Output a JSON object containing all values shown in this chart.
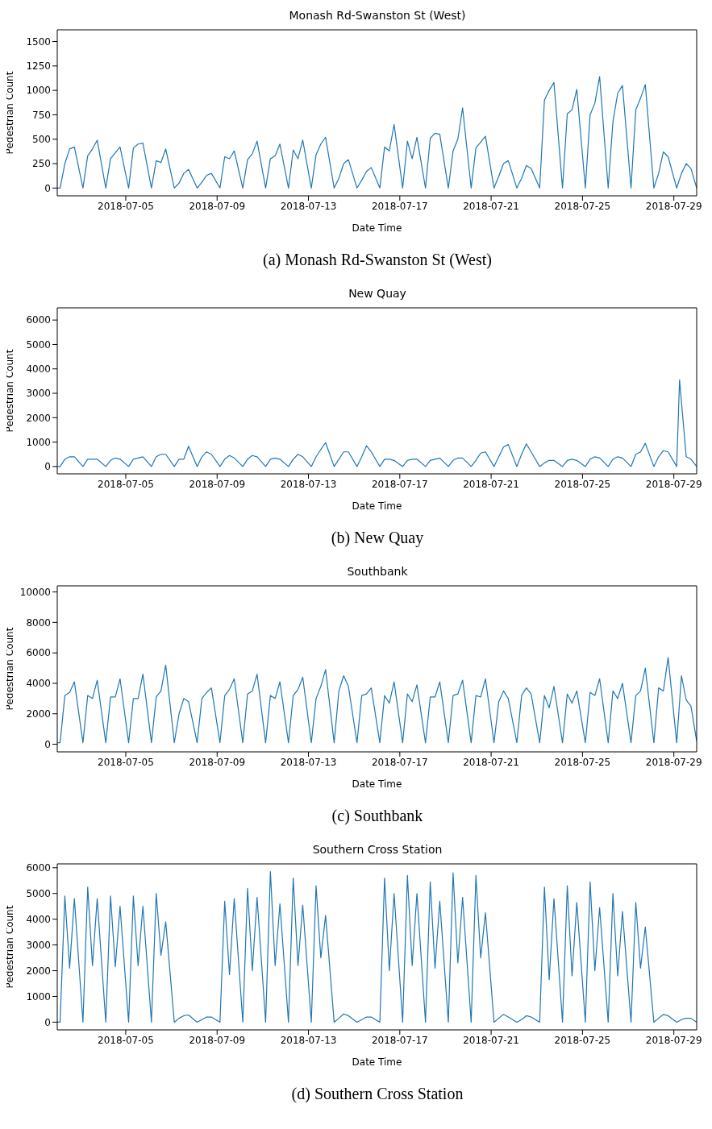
{
  "chart_data": [
    {
      "type": "line",
      "title": "Monash Rd-Swanston St (West)",
      "xlabel": "Date Time",
      "ylabel": "Pedestrian Count",
      "annotations": [
        "(a) Monash Rd-Swanston St (West)"
      ],
      "color": "#1f77b4",
      "xlim": [
        "2018-07-02",
        "2018-07-30"
      ],
      "ylim": [
        -80,
        1620
      ],
      "yticks": [
        0,
        250,
        500,
        750,
        1000,
        1250,
        1500
      ],
      "xticks": [
        "2018-07-05",
        "2018-07-09",
        "2018-07-13",
        "2018-07-17",
        "2018-07-21",
        "2018-07-25",
        "2018-07-29"
      ],
      "x": [
        "2018-07-02T00:00",
        "2018-07-02T03:00",
        "2018-07-02T08:00",
        "2018-07-02T13:00",
        "2018-07-02T18:00",
        "2018-07-03T03:00",
        "2018-07-03T08:00",
        "2018-07-03T13:00",
        "2018-07-03T18:00",
        "2018-07-04T03:00",
        "2018-07-04T08:00",
        "2018-07-04T13:00",
        "2018-07-04T18:00",
        "2018-07-05T03:00",
        "2018-07-05T08:00",
        "2018-07-05T13:00",
        "2018-07-05T18:00",
        "2018-07-06T03:00",
        "2018-07-06T08:00",
        "2018-07-06T13:00",
        "2018-07-06T18:00",
        "2018-07-07T03:00",
        "2018-07-07T08:00",
        "2018-07-07T13:00",
        "2018-07-07T18:00",
        "2018-07-08T03:00",
        "2018-07-08T08:00",
        "2018-07-08T13:00",
        "2018-07-08T18:00",
        "2018-07-09T03:00",
        "2018-07-09T08:00",
        "2018-07-09T13:00",
        "2018-07-09T18:00",
        "2018-07-10T03:00",
        "2018-07-10T08:00",
        "2018-07-10T13:00",
        "2018-07-10T18:00",
        "2018-07-11T03:00",
        "2018-07-11T08:00",
        "2018-07-11T13:00",
        "2018-07-11T18:00",
        "2018-07-12T03:00",
        "2018-07-12T08:00",
        "2018-07-12T13:00",
        "2018-07-12T18:00",
        "2018-07-13T03:00",
        "2018-07-13T08:00",
        "2018-07-13T13:00",
        "2018-07-13T18:00",
        "2018-07-14T03:00",
        "2018-07-14T08:00",
        "2018-07-14T13:00",
        "2018-07-14T18:00",
        "2018-07-15T03:00",
        "2018-07-15T08:00",
        "2018-07-15T13:00",
        "2018-07-15T18:00",
        "2018-07-16T03:00",
        "2018-07-16T08:00",
        "2018-07-16T13:00",
        "2018-07-16T18:00",
        "2018-07-17T03:00",
        "2018-07-17T08:00",
        "2018-07-17T13:00",
        "2018-07-17T18:00",
        "2018-07-18T03:00",
        "2018-07-18T08:00",
        "2018-07-18T13:00",
        "2018-07-18T18:00",
        "2018-07-19T03:00",
        "2018-07-19T08:00",
        "2018-07-19T13:00",
        "2018-07-19T18:00",
        "2018-07-20T03:00",
        "2018-07-20T08:00",
        "2018-07-20T13:00",
        "2018-07-20T18:00",
        "2018-07-21T03:00",
        "2018-07-21T08:00",
        "2018-07-21T13:00",
        "2018-07-21T18:00",
        "2018-07-22T03:00",
        "2018-07-22T08:00",
        "2018-07-22T13:00",
        "2018-07-22T18:00",
        "2018-07-23T03:00",
        "2018-07-23T08:00",
        "2018-07-23T13:00",
        "2018-07-23T18:00",
        "2018-07-24T03:00",
        "2018-07-24T08:00",
        "2018-07-24T13:00",
        "2018-07-24T18:00",
        "2018-07-25T03:00",
        "2018-07-25T08:00",
        "2018-07-25T13:00",
        "2018-07-25T18:00",
        "2018-07-26T03:00",
        "2018-07-26T08:00",
        "2018-07-26T13:00",
        "2018-07-26T18:00",
        "2018-07-27T03:00",
        "2018-07-27T08:00",
        "2018-07-27T13:00",
        "2018-07-27T18:00",
        "2018-07-28T03:00",
        "2018-07-28T08:00",
        "2018-07-28T13:00",
        "2018-07-28T18:00",
        "2018-07-29T03:00",
        "2018-07-29T08:00",
        "2018-07-29T13:00",
        "2018-07-29T18:00",
        "2018-07-30T00:00"
      ],
      "values": [
        0,
        0,
        250,
        400,
        420,
        0,
        330,
        400,
        490,
        0,
        300,
        360,
        420,
        0,
        410,
        450,
        460,
        0,
        280,
        260,
        400,
        0,
        50,
        150,
        190,
        0,
        60,
        130,
        150,
        0,
        320,
        300,
        380,
        0,
        290,
        350,
        480,
        0,
        300,
        330,
        450,
        0,
        390,
        300,
        490,
        0,
        340,
        450,
        520,
        0,
        100,
        250,
        290,
        0,
        80,
        170,
        210,
        0,
        420,
        380,
        650,
        0,
        480,
        300,
        520,
        0,
        510,
        560,
        550,
        0,
        380,
        500,
        820,
        0,
        410,
        470,
        530,
        0,
        120,
        250,
        280,
        0,
        100,
        230,
        200,
        0,
        900,
        1000,
        1080,
        0,
        760,
        800,
        1010,
        0,
        750,
        870,
        1140,
        0,
        680,
        970,
        1050,
        0,
        800,
        920,
        1060,
        0,
        150,
        370,
        320,
        0,
        150,
        250,
        200,
        0
      ]
    },
    {
      "type": "line",
      "title": "New Quay",
      "xlabel": "Date Time",
      "ylabel": "Pedestrian Count",
      "annotations": [
        "(b) New Quay"
      ],
      "color": "#1f77b4",
      "xlim": [
        "2018-07-02",
        "2018-07-30"
      ],
      "ylim": [
        -300,
        6500
      ],
      "yticks": [
        0,
        1000,
        2000,
        3000,
        4000,
        5000,
        6000
      ],
      "xticks": [
        "2018-07-05",
        "2018-07-09",
        "2018-07-13",
        "2018-07-17",
        "2018-07-21",
        "2018-07-25",
        "2018-07-29"
      ],
      "x": [
        "2018-07-02T00:00",
        "2018-07-02T03:00",
        "2018-07-02T08:00",
        "2018-07-02T13:00",
        "2018-07-02T18:00",
        "2018-07-03T03:00",
        "2018-07-03T08:00",
        "2018-07-03T13:00",
        "2018-07-03T18:00",
        "2018-07-04T03:00",
        "2018-07-04T08:00",
        "2018-07-04T13:00",
        "2018-07-04T18:00",
        "2018-07-05T03:00",
        "2018-07-05T08:00",
        "2018-07-05T13:00",
        "2018-07-05T18:00",
        "2018-07-06T03:00",
        "2018-07-06T08:00",
        "2018-07-06T13:00",
        "2018-07-06T18:00",
        "2018-07-07T03:00",
        "2018-07-07T08:00",
        "2018-07-07T13:00",
        "2018-07-07T18:00",
        "2018-07-08T03:00",
        "2018-07-08T08:00",
        "2018-07-08T13:00",
        "2018-07-08T18:00",
        "2018-07-09T03:00",
        "2018-07-09T08:00",
        "2018-07-09T13:00",
        "2018-07-09T18:00",
        "2018-07-10T03:00",
        "2018-07-10T08:00",
        "2018-07-10T13:00",
        "2018-07-10T18:00",
        "2018-07-11T03:00",
        "2018-07-11T08:00",
        "2018-07-11T13:00",
        "2018-07-11T18:00",
        "2018-07-12T03:00",
        "2018-07-12T08:00",
        "2018-07-12T13:00",
        "2018-07-12T18:00",
        "2018-07-13T03:00",
        "2018-07-13T08:00",
        "2018-07-13T13:00",
        "2018-07-13T18:00",
        "2018-07-14T03:00",
        "2018-07-14T08:00",
        "2018-07-14T13:00",
        "2018-07-14T18:00",
        "2018-07-15T03:00",
        "2018-07-15T08:00",
        "2018-07-15T13:00",
        "2018-07-15T18:00",
        "2018-07-16T03:00",
        "2018-07-16T08:00",
        "2018-07-16T13:00",
        "2018-07-16T18:00",
        "2018-07-17T03:00",
        "2018-07-17T08:00",
        "2018-07-17T13:00",
        "2018-07-17T18:00",
        "2018-07-18T03:00",
        "2018-07-18T08:00",
        "2018-07-18T13:00",
        "2018-07-18T18:00",
        "2018-07-19T03:00",
        "2018-07-19T08:00",
        "2018-07-19T13:00",
        "2018-07-19T18:00",
        "2018-07-20T03:00",
        "2018-07-20T08:00",
        "2018-07-20T13:00",
        "2018-07-20T18:00",
        "2018-07-21T03:00",
        "2018-07-21T08:00",
        "2018-07-21T13:00",
        "2018-07-21T18:00",
        "2018-07-22T03:00",
        "2018-07-22T08:00",
        "2018-07-22T13:00",
        "2018-07-22T18:00",
        "2018-07-23T03:00",
        "2018-07-23T08:00",
        "2018-07-23T13:00",
        "2018-07-23T18:00",
        "2018-07-24T03:00",
        "2018-07-24T08:00",
        "2018-07-24T13:00",
        "2018-07-24T18:00",
        "2018-07-25T03:00",
        "2018-07-25T08:00",
        "2018-07-25T13:00",
        "2018-07-25T18:00",
        "2018-07-26T03:00",
        "2018-07-26T08:00",
        "2018-07-26T13:00",
        "2018-07-26T18:00",
        "2018-07-27T03:00",
        "2018-07-27T08:00",
        "2018-07-27T13:00",
        "2018-07-27T18:00",
        "2018-07-28T03:00",
        "2018-07-28T08:00",
        "2018-07-28T13:00",
        "2018-07-28T18:00",
        "2018-07-29T03:00",
        "2018-07-29T06:00",
        "2018-07-29T13:00",
        "2018-07-29T18:00",
        "2018-07-30T00:00"
      ],
      "values": [
        0,
        0,
        300,
        400,
        400,
        0,
        300,
        300,
        300,
        0,
        250,
        350,
        300,
        0,
        300,
        350,
        400,
        0,
        400,
        500,
        500,
        0,
        300,
        300,
        830,
        0,
        400,
        600,
        500,
        0,
        300,
        450,
        350,
        0,
        300,
        450,
        400,
        0,
        300,
        350,
        300,
        0,
        300,
        500,
        400,
        0,
        400,
        700,
        980,
        0,
        300,
        600,
        600,
        0,
        400,
        850,
        600,
        0,
        300,
        300,
        250,
        0,
        250,
        300,
        300,
        0,
        250,
        300,
        350,
        0,
        250,
        350,
        350,
        0,
        250,
        550,
        600,
        0,
        400,
        800,
        900,
        0,
        500,
        930,
        600,
        0,
        150,
        250,
        250,
        0,
        250,
        300,
        250,
        0,
        300,
        400,
        350,
        0,
        300,
        400,
        350,
        0,
        500,
        600,
        950,
        0,
        400,
        650,
        600,
        0,
        3550,
        400,
        300,
        0
      ]
    },
    {
      "type": "line",
      "title": "Southbank",
      "xlabel": "Date Time",
      "ylabel": "Pedestrian Count",
      "annotations": [
        "(c) Southbank"
      ],
      "color": "#1f77b4",
      "xlim": [
        "2018-07-02",
        "2018-07-30"
      ],
      "ylim": [
        -500,
        10400
      ],
      "yticks": [
        0,
        2000,
        4000,
        6000,
        8000,
        10000
      ],
      "xticks": [
        "2018-07-05",
        "2018-07-09",
        "2018-07-13",
        "2018-07-17",
        "2018-07-21",
        "2018-07-25",
        "2018-07-29"
      ],
      "x": [
        "2018-07-02T00:00",
        "2018-07-02T03:00",
        "2018-07-02T08:00",
        "2018-07-02T13:00",
        "2018-07-02T18:00",
        "2018-07-03T03:00",
        "2018-07-03T08:00",
        "2018-07-03T13:00",
        "2018-07-03T18:00",
        "2018-07-04T03:00",
        "2018-07-04T08:00",
        "2018-07-04T13:00",
        "2018-07-04T18:00",
        "2018-07-05T03:00",
        "2018-07-05T08:00",
        "2018-07-05T13:00",
        "2018-07-05T18:00",
        "2018-07-06T03:00",
        "2018-07-06T08:00",
        "2018-07-06T13:00",
        "2018-07-06T18:00",
        "2018-07-07T03:00",
        "2018-07-07T08:00",
        "2018-07-07T13:00",
        "2018-07-07T18:00",
        "2018-07-08T03:00",
        "2018-07-08T08:00",
        "2018-07-08T13:00",
        "2018-07-08T18:00",
        "2018-07-09T03:00",
        "2018-07-09T08:00",
        "2018-07-09T13:00",
        "2018-07-09T18:00",
        "2018-07-10T03:00",
        "2018-07-10T08:00",
        "2018-07-10T13:00",
        "2018-07-10T18:00",
        "2018-07-11T03:00",
        "2018-07-11T08:00",
        "2018-07-11T13:00",
        "2018-07-11T18:00",
        "2018-07-12T03:00",
        "2018-07-12T08:00",
        "2018-07-12T13:00",
        "2018-07-12T18:00",
        "2018-07-13T03:00",
        "2018-07-13T08:00",
        "2018-07-13T13:00",
        "2018-07-13T18:00",
        "2018-07-14T03:00",
        "2018-07-14T08:00",
        "2018-07-14T13:00",
        "2018-07-14T18:00",
        "2018-07-15T03:00",
        "2018-07-15T08:00",
        "2018-07-15T13:00",
        "2018-07-15T18:00",
        "2018-07-16T03:00",
        "2018-07-16T08:00",
        "2018-07-16T13:00",
        "2018-07-16T18:00",
        "2018-07-17T03:00",
        "2018-07-17T08:00",
        "2018-07-17T13:00",
        "2018-07-17T18:00",
        "2018-07-18T03:00",
        "2018-07-18T08:00",
        "2018-07-18T13:00",
        "2018-07-18T18:00",
        "2018-07-19T03:00",
        "2018-07-19T08:00",
        "2018-07-19T13:00",
        "2018-07-19T18:00",
        "2018-07-20T03:00",
        "2018-07-20T08:00",
        "2018-07-20T13:00",
        "2018-07-20T18:00",
        "2018-07-21T03:00",
        "2018-07-21T08:00",
        "2018-07-21T13:00",
        "2018-07-21T18:00",
        "2018-07-22T03:00",
        "2018-07-22T08:00",
        "2018-07-22T13:00",
        "2018-07-22T18:00",
        "2018-07-23T03:00",
        "2018-07-23T08:00",
        "2018-07-23T13:00",
        "2018-07-23T18:00",
        "2018-07-24T03:00",
        "2018-07-24T08:00",
        "2018-07-24T13:00",
        "2018-07-24T18:00",
        "2018-07-25T03:00",
        "2018-07-25T08:00",
        "2018-07-25T13:00",
        "2018-07-25T18:00",
        "2018-07-26T03:00",
        "2018-07-26T08:00",
        "2018-07-26T13:00",
        "2018-07-26T18:00",
        "2018-07-27T03:00",
        "2018-07-27T08:00",
        "2018-07-27T13:00",
        "2018-07-27T18:00",
        "2018-07-28T03:00",
        "2018-07-28T08:00",
        "2018-07-28T13:00",
        "2018-07-28T18:00",
        "2018-07-29T03:00",
        "2018-07-29T08:00",
        "2018-07-29T13:00",
        "2018-07-29T18:00",
        "2018-07-30T00:00"
      ],
      "values": [
        100,
        100,
        3200,
        3400,
        4100,
        100,
        3200,
        3000,
        4200,
        100,
        3100,
        3100,
        4300,
        100,
        3000,
        3000,
        4600,
        100,
        3100,
        3500,
        5200,
        100,
        2000,
        3000,
        2800,
        100,
        3000,
        3400,
        3700,
        100,
        3200,
        3600,
        4300,
        100,
        3300,
        3500,
        4600,
        100,
        3200,
        3000,
        4100,
        100,
        3200,
        3600,
        4400,
        100,
        3000,
        3800,
        4900,
        100,
        3500,
        4500,
        3800,
        100,
        3200,
        3300,
        3700,
        100,
        3200,
        2700,
        4100,
        100,
        3300,
        2800,
        3900,
        100,
        3100,
        3100,
        4100,
        100,
        3200,
        3300,
        4200,
        100,
        3200,
        3100,
        4300,
        100,
        2800,
        3500,
        3000,
        100,
        3200,
        3700,
        3300,
        100,
        3200,
        2400,
        3800,
        100,
        3300,
        2700,
        3500,
        100,
        3400,
        3200,
        4300,
        100,
        3500,
        3000,
        4000,
        100,
        3200,
        3500,
        5000,
        100,
        3700,
        3500,
        5700,
        100,
        4500,
        2900,
        2500,
        200
      ]
    },
    {
      "type": "line",
      "title": "Southern Cross Station",
      "xlabel": "Date Time",
      "ylabel": "Pedestrian Count",
      "annotations": [
        "(d) Southern Cross Station"
      ],
      "color": "#1f77b4",
      "xlim": [
        "2018-07-02",
        "2018-07-30"
      ],
      "ylim": [
        -300,
        6150
      ],
      "yticks": [
        0,
        1000,
        2000,
        3000,
        4000,
        5000,
        6000
      ],
      "xticks": [
        "2018-07-05",
        "2018-07-09",
        "2018-07-13",
        "2018-07-17",
        "2018-07-21",
        "2018-07-25",
        "2018-07-29"
      ],
      "x": [
        "2018-07-02T00:00",
        "2018-07-02T03:00",
        "2018-07-02T08:00",
        "2018-07-02T13:00",
        "2018-07-02T18:00",
        "2018-07-03T03:00",
        "2018-07-03T08:00",
        "2018-07-03T13:00",
        "2018-07-03T18:00",
        "2018-07-04T03:00",
        "2018-07-04T08:00",
        "2018-07-04T13:00",
        "2018-07-04T18:00",
        "2018-07-05T03:00",
        "2018-07-05T08:00",
        "2018-07-05T13:00",
        "2018-07-05T18:00",
        "2018-07-06T03:00",
        "2018-07-06T08:00",
        "2018-07-06T13:00",
        "2018-07-06T18:00",
        "2018-07-07T03:00",
        "2018-07-07T08:00",
        "2018-07-07T13:00",
        "2018-07-07T18:00",
        "2018-07-08T03:00",
        "2018-07-08T08:00",
        "2018-07-08T13:00",
        "2018-07-08T18:00",
        "2018-07-09T03:00",
        "2018-07-09T08:00",
        "2018-07-09T13:00",
        "2018-07-09T18:00",
        "2018-07-10T03:00",
        "2018-07-10T08:00",
        "2018-07-10T13:00",
        "2018-07-10T18:00",
        "2018-07-11T03:00",
        "2018-07-11T08:00",
        "2018-07-11T13:00",
        "2018-07-11T18:00",
        "2018-07-12T03:00",
        "2018-07-12T08:00",
        "2018-07-12T13:00",
        "2018-07-12T18:00",
        "2018-07-13T03:00",
        "2018-07-13T08:00",
        "2018-07-13T13:00",
        "2018-07-13T18:00",
        "2018-07-14T03:00",
        "2018-07-14T08:00",
        "2018-07-14T13:00",
        "2018-07-14T18:00",
        "2018-07-15T03:00",
        "2018-07-15T08:00",
        "2018-07-15T13:00",
        "2018-07-15T18:00",
        "2018-07-16T03:00",
        "2018-07-16T08:00",
        "2018-07-16T13:00",
        "2018-07-16T18:00",
        "2018-07-17T03:00",
        "2018-07-17T08:00",
        "2018-07-17T13:00",
        "2018-07-17T18:00",
        "2018-07-18T03:00",
        "2018-07-18T08:00",
        "2018-07-18T13:00",
        "2018-07-18T18:00",
        "2018-07-19T03:00",
        "2018-07-19T08:00",
        "2018-07-19T13:00",
        "2018-07-19T18:00",
        "2018-07-20T03:00",
        "2018-07-20T08:00",
        "2018-07-20T13:00",
        "2018-07-20T18:00",
        "2018-07-21T03:00",
        "2018-07-21T08:00",
        "2018-07-21T13:00",
        "2018-07-21T18:00",
        "2018-07-22T03:00",
        "2018-07-22T08:00",
        "2018-07-22T13:00",
        "2018-07-22T18:00",
        "2018-07-23T03:00",
        "2018-07-23T08:00",
        "2018-07-23T13:00",
        "2018-07-23T18:00",
        "2018-07-24T03:00",
        "2018-07-24T08:00",
        "2018-07-24T13:00",
        "2018-07-24T18:00",
        "2018-07-25T03:00",
        "2018-07-25T08:00",
        "2018-07-25T13:00",
        "2018-07-25T18:00",
        "2018-07-26T03:00",
        "2018-07-26T08:00",
        "2018-07-26T13:00",
        "2018-07-26T18:00",
        "2018-07-27T03:00",
        "2018-07-27T08:00",
        "2018-07-27T13:00",
        "2018-07-27T18:00",
        "2018-07-28T03:00",
        "2018-07-28T08:00",
        "2018-07-28T13:00",
        "2018-07-28T18:00",
        "2018-07-29T03:00",
        "2018-07-29T08:00",
        "2018-07-29T13:00",
        "2018-07-29T18:00",
        "2018-07-30T00:00"
      ],
      "values": [
        0,
        0,
        4900,
        2100,
        4800,
        0,
        5250,
        2200,
        4800,
        0,
        4900,
        2150,
        4500,
        0,
        4900,
        2200,
        4500,
        0,
        5000,
        2600,
        3900,
        0,
        150,
        250,
        280,
        0,
        100,
        200,
        200,
        0,
        4700,
        1850,
        4800,
        0,
        5200,
        2000,
        4850,
        0,
        5850,
        2200,
        4600,
        0,
        5600,
        2200,
        4550,
        0,
        5300,
        2500,
        4150,
        0,
        150,
        320,
        250,
        0,
        100,
        200,
        200,
        0,
        5600,
        2000,
        5000,
        0,
        5700,
        2200,
        5000,
        0,
        5450,
        2100,
        4700,
        0,
        5800,
        2300,
        4850,
        0,
        5700,
        2500,
        4250,
        0,
        150,
        300,
        200,
        0,
        100,
        250,
        200,
        0,
        5250,
        1650,
        4800,
        0,
        5300,
        1800,
        4650,
        0,
        5450,
        2000,
        4450,
        0,
        5000,
        1800,
        4300,
        0,
        4650,
        2100,
        3700,
        0,
        150,
        300,
        250,
        0,
        100,
        150,
        150,
        0
      ]
    }
  ]
}
